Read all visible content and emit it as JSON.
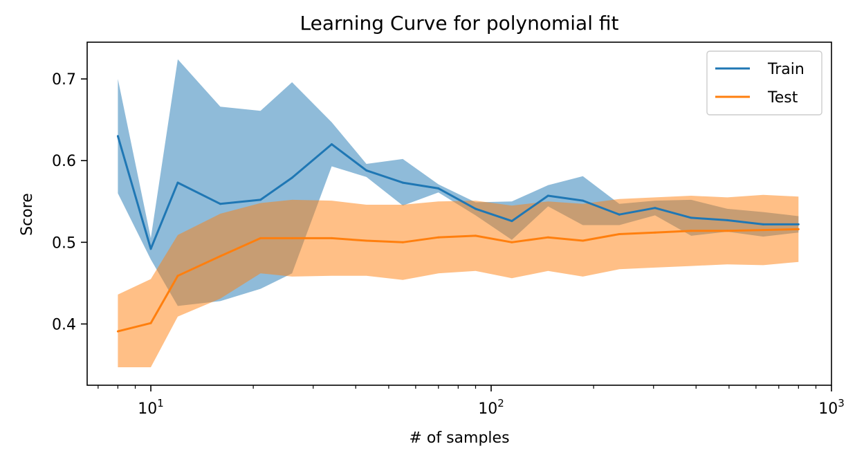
{
  "chart_data": {
    "type": "line",
    "title": "Learning Curve for polynomial fit",
    "xlabel": "# of samples",
    "ylabel": "Score",
    "xscale": "log",
    "xlim": [
      6.5,
      1000
    ],
    "ylim": [
      0.325,
      0.745
    ],
    "grid": false,
    "legend_position": "top-right",
    "x_ticks": [
      {
        "value": 10,
        "base": "10",
        "exp": "1"
      },
      {
        "value": 100,
        "base": "10",
        "exp": "2"
      },
      {
        "value": 1000,
        "base": "10",
        "exp": "3"
      }
    ],
    "y_ticks": [
      {
        "value": 0.4,
        "label": "0.4"
      },
      {
        "value": 0.5,
        "label": "0.5"
      },
      {
        "value": 0.6,
        "label": "0.6"
      },
      {
        "value": 0.7,
        "label": "0.7"
      }
    ],
    "x": [
      8,
      10,
      12,
      16,
      21,
      26,
      34,
      43,
      55,
      70,
      90,
      115,
      147,
      186,
      238,
      303,
      387,
      494,
      630,
      800
    ],
    "series": [
      {
        "name": "Train",
        "color": "#1f77b4",
        "band_color": "#1f77b4",
        "values": [
          0.63,
          0.492,
          0.573,
          0.547,
          0.552,
          0.579,
          0.62,
          0.588,
          0.573,
          0.566,
          0.541,
          0.526,
          0.557,
          0.551,
          0.534,
          0.542,
          0.53,
          0.527,
          0.522,
          0.522
        ],
        "upper": [
          0.7,
          0.505,
          0.724,
          0.666,
          0.661,
          0.696,
          0.647,
          0.596,
          0.602,
          0.571,
          0.549,
          0.55,
          0.57,
          0.581,
          0.547,
          0.551,
          0.552,
          0.541,
          0.537,
          0.532
        ],
        "lower": [
          0.56,
          0.479,
          0.422,
          0.428,
          0.443,
          0.462,
          0.593,
          0.58,
          0.545,
          0.561,
          0.533,
          0.503,
          0.544,
          0.521,
          0.521,
          0.533,
          0.508,
          0.513,
          0.507,
          0.512
        ]
      },
      {
        "name": "Test",
        "color": "#ff7f0e",
        "band_color": "#ff7f0e",
        "values": [
          0.391,
          0.401,
          0.459,
          0.483,
          0.505,
          0.505,
          0.505,
          0.502,
          0.5,
          0.506,
          0.508,
          0.5,
          0.506,
          0.502,
          0.51,
          0.512,
          0.514,
          0.514,
          0.515,
          0.516
        ],
        "upper": [
          0.436,
          0.455,
          0.509,
          0.535,
          0.548,
          0.552,
          0.551,
          0.546,
          0.546,
          0.55,
          0.551,
          0.545,
          0.55,
          0.547,
          0.553,
          0.555,
          0.557,
          0.555,
          0.558,
          0.556
        ],
        "lower": [
          0.347,
          0.347,
          0.409,
          0.431,
          0.462,
          0.458,
          0.459,
          0.459,
          0.454,
          0.462,
          0.465,
          0.456,
          0.465,
          0.458,
          0.467,
          0.469,
          0.471,
          0.473,
          0.472,
          0.476
        ]
      }
    ]
  }
}
